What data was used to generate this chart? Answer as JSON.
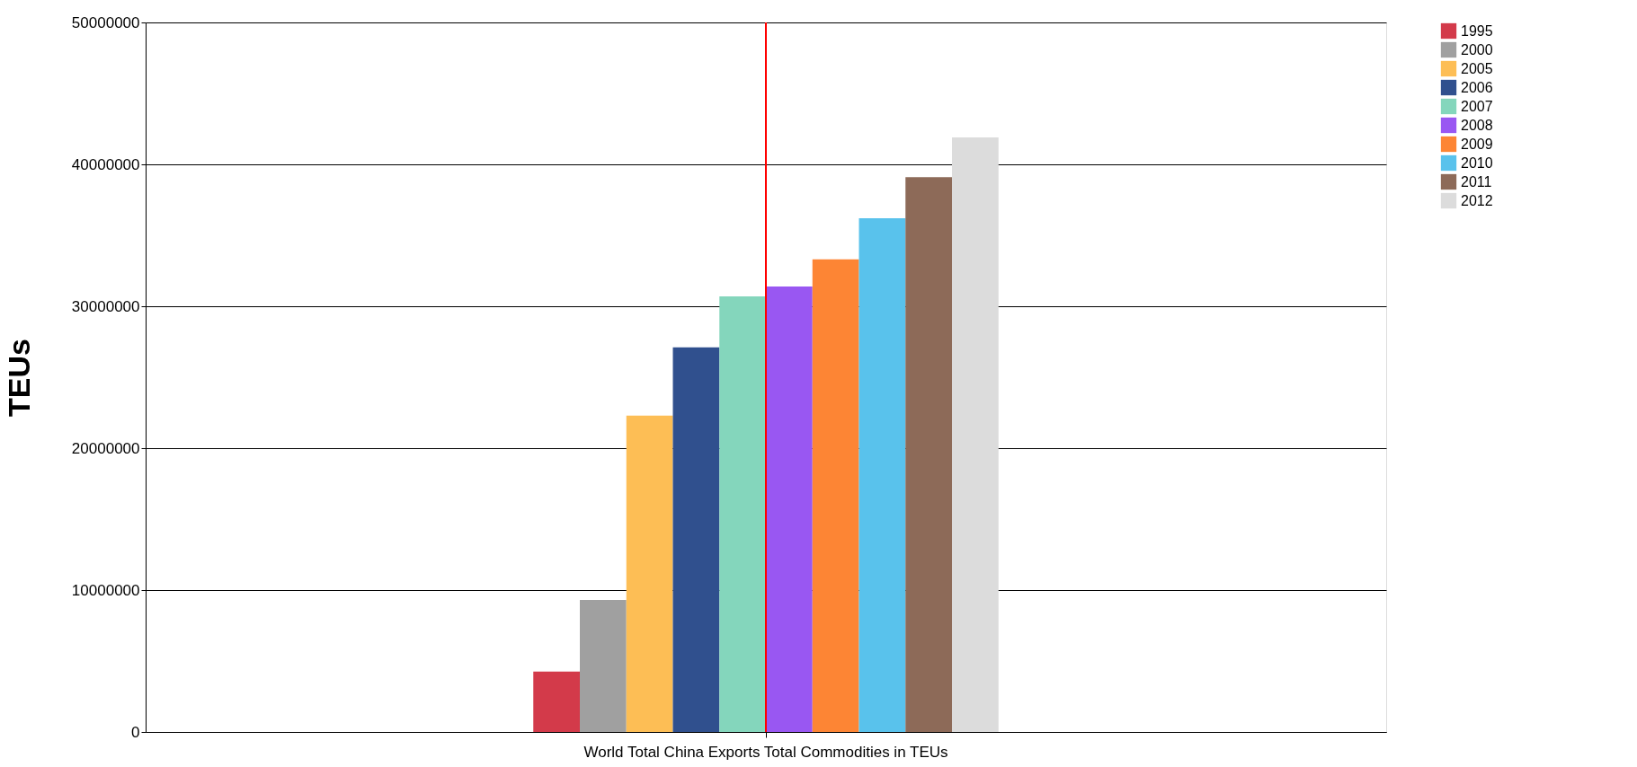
{
  "chart_data": {
    "type": "bar",
    "ylabel": "TEUs",
    "categories": [
      "World Total China Exports Total Commodities in TEUs"
    ],
    "series": [
      {
        "name": "1995",
        "color": "#d33a4a",
        "values": [
          4260000
        ]
      },
      {
        "name": "2000",
        "color": "#a0a0a0",
        "values": [
          9310000
        ]
      },
      {
        "name": "2005",
        "color": "#fdbe55",
        "values": [
          22300000
        ]
      },
      {
        "name": "2006",
        "color": "#30508e",
        "values": [
          27100000
        ]
      },
      {
        "name": "2007",
        "color": "#84d6bc",
        "values": [
          30700000
        ]
      },
      {
        "name": "2008",
        "color": "#9957f2",
        "values": [
          31400000
        ]
      },
      {
        "name": "2009",
        "color": "#fd8534",
        "values": [
          33300000
        ]
      },
      {
        "name": "2010",
        "color": "#59c2ec",
        "values": [
          36200000
        ]
      },
      {
        "name": "2011",
        "color": "#8d6a58",
        "values": [
          39100000
        ]
      },
      {
        "name": "2012",
        "color": "#dcdcdc",
        "values": [
          41900000
        ]
      }
    ],
    "ylim": [
      0,
      50000000
    ],
    "yticks": [
      0,
      10000000,
      20000000,
      30000000,
      40000000,
      50000000
    ],
    "grid": "y",
    "legend": "top right",
    "ref_lines": [
      {
        "axis": "x",
        "value": "World Total China Exports Total Commodities in TEUs",
        "color": "#ff0000"
      }
    ]
  }
}
